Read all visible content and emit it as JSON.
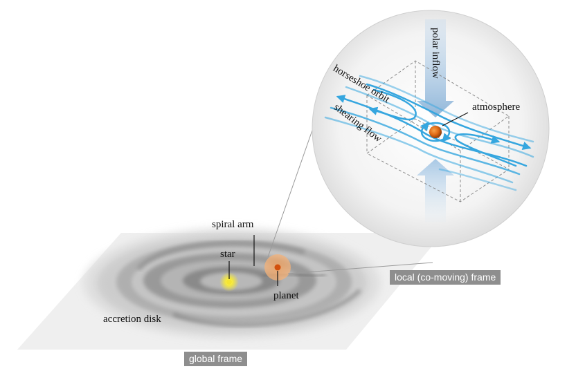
{
  "labels": {
    "spiral_arm": "spiral arm",
    "star": "star",
    "planet": "planet",
    "accretion_disk": "accretion disk",
    "polar_inflow": "polar inflow",
    "horseshoe_orbit": "horseshoe orbit",
    "shearing_flow": "shearing flow",
    "atmosphere": "atmosphere"
  },
  "frames": {
    "global": "global frame",
    "local": "local (co-moving) frame"
  },
  "colors": {
    "flow_blue": "#35a6df",
    "planet_orange": "#e8731e",
    "star_yellow": "#f2e43a",
    "tag_gray": "#8e8e8e",
    "disk_gray": "#9a9a9a"
  }
}
